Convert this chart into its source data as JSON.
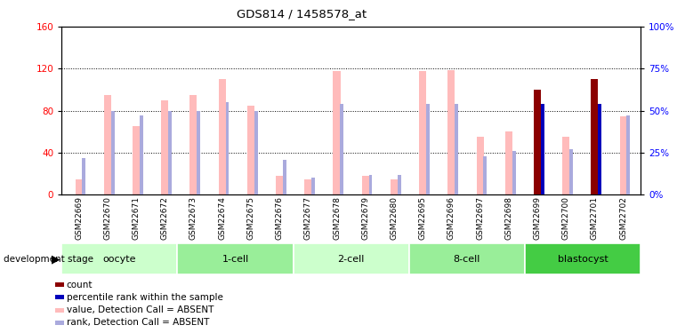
{
  "title": "GDS814 / 1458578_at",
  "samples": [
    "GSM22669",
    "GSM22670",
    "GSM22671",
    "GSM22672",
    "GSM22673",
    "GSM22674",
    "GSM22675",
    "GSM22676",
    "GSM22677",
    "GSM22678",
    "GSM22679",
    "GSM22680",
    "GSM22695",
    "GSM22696",
    "GSM22697",
    "GSM22698",
    "GSM22699",
    "GSM22700",
    "GSM22701",
    "GSM22702"
  ],
  "value_absent": [
    15,
    95,
    65,
    90,
    95,
    110,
    85,
    18,
    15,
    118,
    18,
    15,
    118,
    119,
    55,
    60,
    62,
    55,
    105,
    75
  ],
  "rank_absent": [
    22,
    50,
    47,
    50,
    50,
    55,
    50,
    21,
    10,
    54,
    12,
    12,
    54,
    54,
    23,
    26,
    26,
    27,
    53,
    47
  ],
  "count_value": [
    0,
    0,
    0,
    0,
    0,
    0,
    0,
    0,
    0,
    0,
    0,
    0,
    0,
    0,
    0,
    0,
    100,
    0,
    110,
    0
  ],
  "count_rank": [
    0,
    0,
    0,
    0,
    0,
    0,
    0,
    0,
    0,
    0,
    0,
    0,
    0,
    0,
    0,
    0,
    54,
    0,
    54,
    0
  ],
  "stages": [
    {
      "label": "oocyte",
      "start": 0,
      "end": 4,
      "color": "#ccffcc"
    },
    {
      "label": "1-cell",
      "start": 4,
      "end": 8,
      "color": "#99ee99"
    },
    {
      "label": "2-cell",
      "start": 8,
      "end": 12,
      "color": "#ccffcc"
    },
    {
      "label": "8-cell",
      "start": 12,
      "end": 16,
      "color": "#99ee99"
    },
    {
      "label": "blastocyst",
      "start": 16,
      "end": 20,
      "color": "#44cc44"
    }
  ],
  "ylim_left": [
    0,
    160
  ],
  "ylim_right": [
    0,
    100
  ],
  "yticks_left": [
    0,
    40,
    80,
    120,
    160
  ],
  "yticks_right": [
    0,
    25,
    50,
    75,
    100
  ],
  "color_count": "#8b0000",
  "color_rank_present": "#0000bb",
  "color_value_absent": "#ffbbbb",
  "color_rank_absent": "#aaaadd"
}
